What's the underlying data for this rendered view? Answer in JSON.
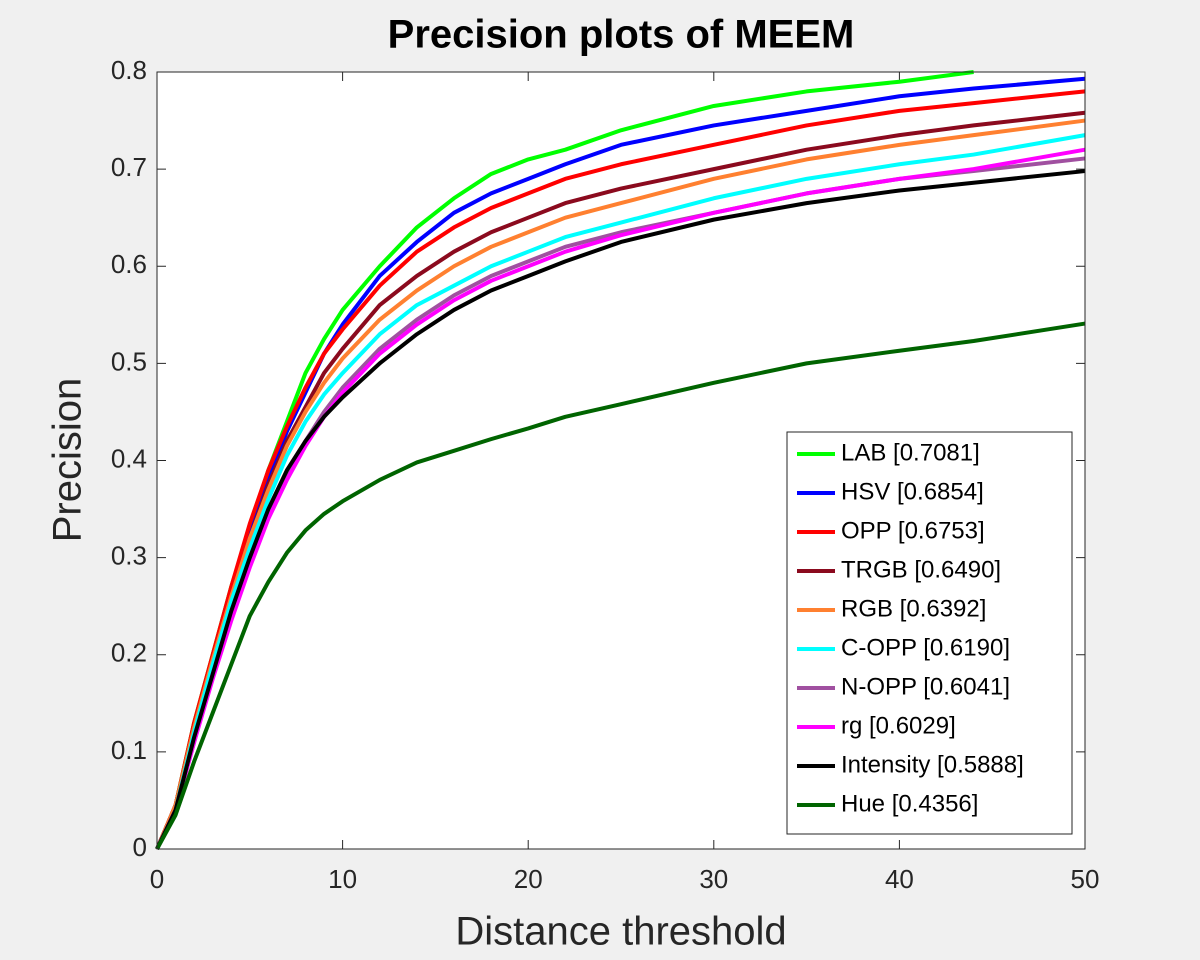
{
  "chart_data": {
    "type": "line",
    "title": "Precision plots of MEEM",
    "x_label": "Distance threshold",
    "y_label": "Precision",
    "x": [
      0,
      1,
      2,
      3,
      4,
      5,
      6,
      7,
      8,
      9,
      10,
      12,
      14,
      16,
      18,
      20,
      22,
      25,
      30,
      35,
      40,
      44,
      50
    ],
    "xlim": [
      0,
      50
    ],
    "ylim": [
      0,
      0.8
    ],
    "xticks": [
      0,
      10,
      20,
      30,
      40,
      50
    ],
    "yticks": [
      0,
      0.1,
      0.2,
      0.3,
      0.4,
      0.5,
      0.6,
      0.7,
      0.8
    ],
    "legend": "lower right",
    "series": [
      {
        "name": "LAB [0.7081]",
        "color": "#00ff00",
        "values": [
          0,
          0.045,
          0.13,
          0.2,
          0.27,
          0.33,
          0.39,
          0.44,
          0.49,
          0.525,
          0.555,
          0.6,
          0.64,
          0.67,
          0.695,
          0.71,
          0.72,
          0.74,
          0.765,
          0.78,
          0.79,
          0.8,
          null
        ]
      },
      {
        "name": "HSV [0.6854]",
        "color": "#0000ff",
        "values": [
          0,
          0.045,
          0.125,
          0.195,
          0.265,
          0.325,
          0.38,
          0.43,
          0.47,
          0.51,
          0.54,
          0.59,
          0.625,
          0.655,
          0.675,
          0.69,
          0.705,
          0.725,
          0.745,
          0.76,
          0.775,
          0.783,
          0.793
        ]
      },
      {
        "name": "OPP [0.6753]",
        "color": "#ff0000",
        "values": [
          0,
          0.045,
          0.13,
          0.2,
          0.27,
          0.335,
          0.39,
          0.435,
          0.475,
          0.51,
          0.535,
          0.58,
          0.615,
          0.64,
          0.66,
          0.675,
          0.69,
          0.705,
          0.725,
          0.745,
          0.76,
          0.768,
          0.78
        ]
      },
      {
        "name": "TRGB [0.6490]",
        "color": "#8b0a1e",
        "values": [
          0,
          0.045,
          0.125,
          0.195,
          0.26,
          0.32,
          0.375,
          0.42,
          0.455,
          0.49,
          0.515,
          0.56,
          0.59,
          0.615,
          0.635,
          0.65,
          0.665,
          0.68,
          0.7,
          0.72,
          0.735,
          0.745,
          0.758
        ]
      },
      {
        "name": "RGB [0.6392]",
        "color": "#ff8030",
        "values": [
          0,
          0.045,
          0.125,
          0.195,
          0.26,
          0.32,
          0.37,
          0.415,
          0.45,
          0.48,
          0.505,
          0.545,
          0.575,
          0.6,
          0.62,
          0.635,
          0.65,
          0.665,
          0.69,
          0.71,
          0.725,
          0.735,
          0.75
        ]
      },
      {
        "name": "C-OPP [0.6190]",
        "color": "#00ffff",
        "values": [
          0,
          0.04,
          0.12,
          0.19,
          0.255,
          0.31,
          0.36,
          0.405,
          0.44,
          0.468,
          0.49,
          0.53,
          0.56,
          0.58,
          0.6,
          0.615,
          0.63,
          0.645,
          0.67,
          0.69,
          0.705,
          0.715,
          0.735
        ]
      },
      {
        "name": "N-OPP [0.6041]",
        "color": "#a050a0",
        "values": [
          0,
          0.04,
          0.11,
          0.18,
          0.24,
          0.295,
          0.345,
          0.385,
          0.42,
          0.45,
          0.475,
          0.515,
          0.545,
          0.57,
          0.59,
          0.605,
          0.62,
          0.635,
          0.655,
          0.675,
          0.69,
          0.698,
          0.711
        ]
      },
      {
        "name": "rg [0.6029]",
        "color": "#ff00ff",
        "values": [
          0,
          0.04,
          0.11,
          0.175,
          0.235,
          0.29,
          0.34,
          0.38,
          0.415,
          0.445,
          0.47,
          0.51,
          0.54,
          0.565,
          0.585,
          0.6,
          0.615,
          0.632,
          0.655,
          0.675,
          0.69,
          0.7,
          0.72
        ]
      },
      {
        "name": "Intensity [0.5888]",
        "color": "#000000",
        "values": [
          0,
          0.04,
          0.115,
          0.18,
          0.245,
          0.3,
          0.35,
          0.39,
          0.42,
          0.445,
          0.465,
          0.5,
          0.53,
          0.555,
          0.575,
          0.59,
          0.605,
          0.625,
          0.648,
          0.665,
          0.678,
          0.686,
          0.698
        ]
      },
      {
        "name": "Hue [0.4356]",
        "color": "#006400",
        "values": [
          0,
          0.035,
          0.09,
          0.14,
          0.19,
          0.24,
          0.275,
          0.305,
          0.328,
          0.345,
          0.358,
          0.38,
          0.398,
          0.41,
          0.422,
          0.433,
          0.445,
          0.458,
          0.48,
          0.5,
          0.513,
          0.523,
          0.541
        ]
      }
    ]
  }
}
